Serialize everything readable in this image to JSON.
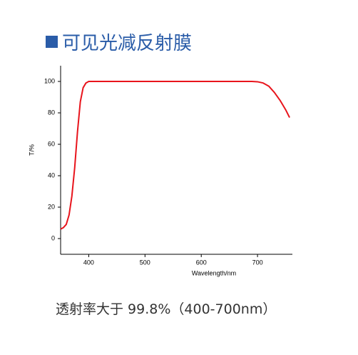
{
  "title": "可见光减反射膜",
  "chart_data": {
    "type": "line",
    "x_label": "Wavelength/nm",
    "y_label": "T/%",
    "x": [
      350,
      355,
      360,
      365,
      370,
      375,
      380,
      385,
      390,
      395,
      400,
      690,
      700,
      710,
      720,
      730,
      740,
      750,
      757
    ],
    "series": [
      {
        "name": "T",
        "color": "#e8141c",
        "values": [
          6,
          7,
          9,
          15,
          27,
          45,
          68,
          87,
          96,
          99,
          100,
          100,
          99.8,
          99,
          97,
          93,
          88,
          82,
          77
        ]
      }
    ],
    "xlim": [
      350,
      762
    ],
    "xticks": [
      400,
      500,
      600,
      700
    ],
    "ylim": [
      -10,
      110
    ],
    "yticks": [
      0,
      20,
      40,
      60,
      80,
      100
    ]
  },
  "caption": "透射率大于 99.8%（400-700nm）"
}
